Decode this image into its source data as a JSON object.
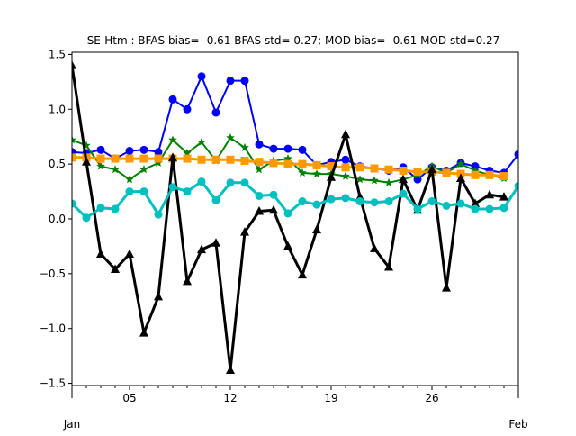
{
  "chart_data": {
    "type": "line",
    "title": "SE-Htm   : BFAS bias= -0.61 BFAS std= 0.27; MOD bias= -0.61 MOD std=0.27",
    "xlabel": "",
    "ylabel": "",
    "xlim": [
      1,
      32
    ],
    "ylim": [
      -1.52,
      1.52
    ],
    "grid": false,
    "x": [
      1,
      2,
      3,
      4,
      5,
      6,
      7,
      8,
      9,
      10,
      11,
      12,
      13,
      14,
      15,
      16,
      17,
      18,
      19,
      20,
      21,
      22,
      23,
      24,
      25,
      26,
      27,
      28,
      29,
      30,
      31,
      32
    ],
    "x_ticks": [
      {
        "x": 5,
        "label": "05"
      },
      {
        "x": 12,
        "label": "12"
      },
      {
        "x": 19,
        "label": "19"
      },
      {
        "x": 26,
        "label": "26"
      }
    ],
    "x_minor_ticks": [
      1,
      2,
      3,
      4,
      6,
      7,
      8,
      9,
      10,
      11,
      13,
      14,
      15,
      16,
      17,
      18,
      20,
      21,
      22,
      23,
      24,
      25,
      27,
      28,
      29,
      30,
      31,
      32
    ],
    "x_edge_labels": {
      "left": "Jan",
      "right": "Feb"
    },
    "y_ticks": [
      -1.5,
      -1.0,
      -0.5,
      0.0,
      0.5,
      1.0,
      1.5
    ],
    "y_tick_labels": [
      "−1.5",
      "−1.0",
      "−0.5",
      "0.0",
      "0.5",
      "1.0",
      "1.5"
    ],
    "series": [
      {
        "color": "#0000ff",
        "marker": "circle",
        "width": 2,
        "values": [
          0.61,
          0.6,
          0.63,
          0.55,
          0.62,
          0.63,
          0.61,
          1.09,
          1.0,
          1.3,
          0.97,
          1.26,
          1.26,
          0.68,
          0.64,
          0.64,
          0.63,
          0.49,
          0.52,
          0.54,
          0.48,
          0.46,
          0.44,
          0.47,
          0.36,
          0.47,
          0.44,
          0.51,
          0.48,
          0.44,
          0.42,
          0.59
        ]
      },
      {
        "color": "#008000",
        "marker": "star",
        "width": 2,
        "values": [
          0.72,
          0.67,
          0.48,
          0.45,
          0.36,
          0.45,
          0.51,
          0.72,
          0.6,
          0.7,
          0.53,
          0.74,
          0.65,
          0.45,
          0.53,
          0.55,
          0.42,
          0.41,
          0.41,
          0.39,
          0.36,
          0.35,
          0.33,
          0.36,
          0.4,
          0.48,
          0.42,
          0.5,
          0.44,
          0.4,
          0.37,
          null
        ]
      },
      {
        "color": "#ff9900",
        "marker": "square",
        "width": 3,
        "values": [
          0.56,
          0.56,
          0.55,
          0.55,
          0.55,
          0.55,
          0.55,
          0.55,
          0.55,
          0.54,
          0.54,
          0.54,
          0.53,
          0.52,
          0.51,
          0.5,
          0.5,
          0.49,
          0.48,
          0.47,
          0.47,
          0.46,
          0.45,
          0.44,
          0.43,
          0.43,
          0.42,
          0.41,
          0.4,
          0.4,
          0.39,
          null
        ]
      },
      {
        "color": "#000000",
        "marker": "triangle",
        "width": 3,
        "values": [
          1.4,
          0.52,
          -0.32,
          -0.46,
          -0.32,
          -1.04,
          -0.71,
          0.56,
          -0.57,
          -0.28,
          -0.22,
          -1.38,
          -0.12,
          0.07,
          0.08,
          -0.25,
          -0.51,
          -0.1,
          0.38,
          0.77,
          0.2,
          -0.27,
          -0.44,
          0.36,
          0.08,
          0.45,
          -0.63,
          0.37,
          0.14,
          0.22,
          0.2,
          null
        ]
      },
      {
        "color": "#00bfbf",
        "marker": "circle",
        "width": 3,
        "values": [
          0.14,
          0.01,
          0.1,
          0.09,
          0.25,
          0.25,
          0.04,
          0.29,
          0.25,
          0.34,
          0.17,
          0.33,
          0.33,
          0.21,
          0.22,
          0.05,
          0.16,
          0.13,
          0.18,
          0.19,
          0.16,
          0.15,
          0.16,
          0.23,
          0.09,
          0.16,
          0.12,
          0.14,
          0.09,
          0.09,
          0.1,
          0.3
        ]
      }
    ]
  }
}
